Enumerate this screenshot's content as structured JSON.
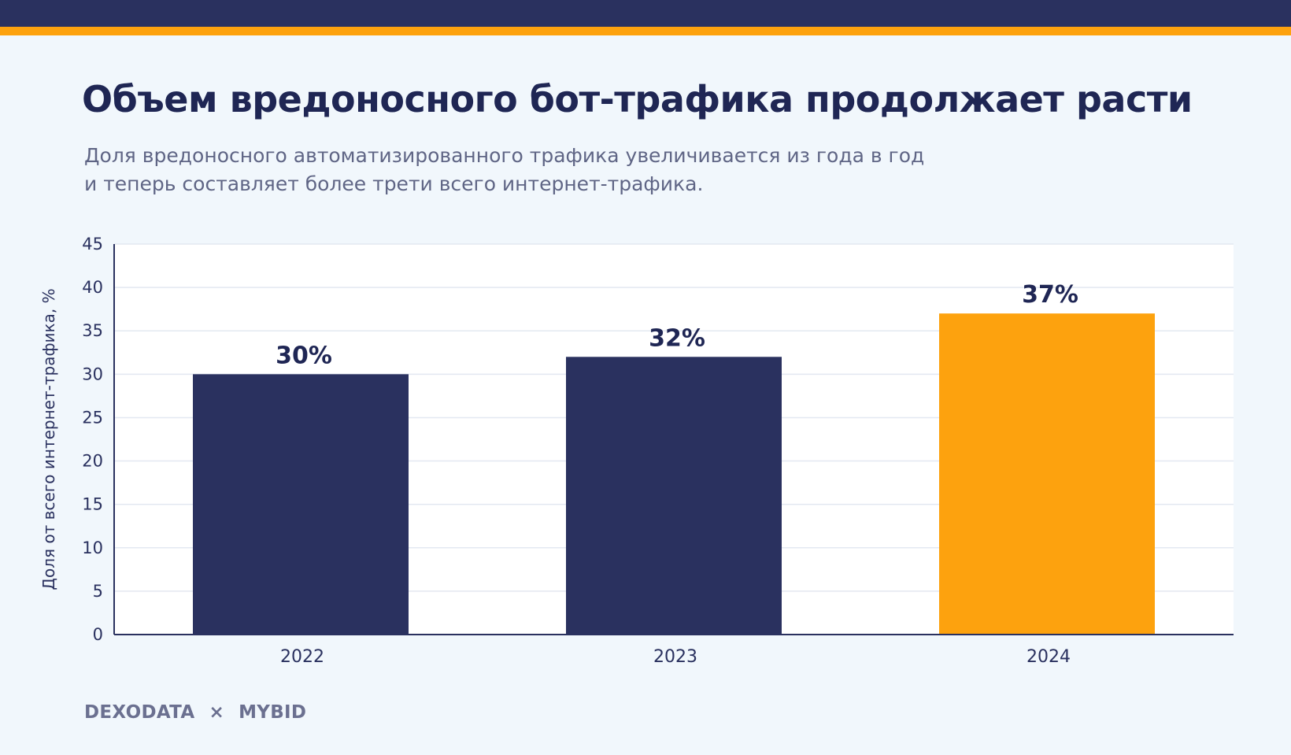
{
  "header": {
    "title": "Объем вредоносного бот-трафика продолжает расти",
    "subtitle_lines": [
      "Доля вредоносного автоматизированного трафика увеличивается из года в год",
      "и теперь составляет более трети всего интернет-трафика."
    ]
  },
  "chart_data": {
    "type": "bar",
    "categories": [
      "2022",
      "2023",
      "2024"
    ],
    "values": [
      30,
      32,
      37
    ],
    "data_labels": [
      "30%",
      "32%",
      "37%"
    ],
    "ylabel": "Доля от всего интернет-трафика, %",
    "xlabel": "",
    "ylim": [
      0,
      45
    ],
    "yticks": [
      0,
      5,
      10,
      15,
      20,
      25,
      30,
      35,
      40,
      45
    ],
    "grid": true,
    "colors": {
      "default_bar": "#2a315f",
      "highlight_bar": "#fda20e",
      "highlight_index": 2,
      "label": "#1f2654"
    }
  },
  "footer": {
    "brand_left": "DEXODATA",
    "separator": "×",
    "brand_right": "MYBID"
  },
  "colors": {
    "top_bar": "#2a315f",
    "accent_bar": "#fda20e",
    "background": "#f1f7fc"
  }
}
